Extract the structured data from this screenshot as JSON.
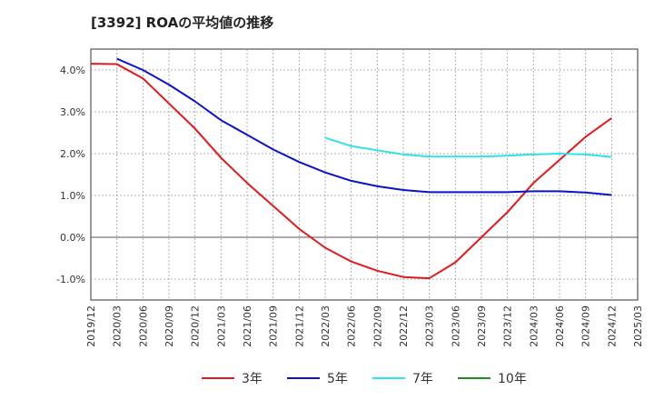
{
  "chart_data": {
    "type": "line",
    "title": "[3392]  ROAの平均値の推移",
    "x": [
      "2019/12",
      "2020/03",
      "2020/06",
      "2020/09",
      "2020/12",
      "2021/03",
      "2021/06",
      "2021/09",
      "2021/12",
      "2022/03",
      "2022/06",
      "2022/09",
      "2022/12",
      "2023/03",
      "2023/06",
      "2023/09",
      "2023/12",
      "2024/03",
      "2024/06",
      "2024/09",
      "2024/12",
      "2025/03"
    ],
    "y_ticks": [
      "-1.0%",
      "0.0%",
      "1.0%",
      "2.0%",
      "3.0%",
      "4.0%"
    ],
    "ylim": [
      -1.5,
      4.5
    ],
    "grid": true,
    "legend_position": "bottom",
    "series": [
      {
        "name": "3年",
        "color": "#e31a1c",
        "values": [
          4.15,
          4.14,
          3.8,
          3.2,
          2.6,
          1.9,
          1.3,
          0.75,
          0.2,
          -0.25,
          -0.58,
          -0.8,
          -0.95,
          -0.98,
          -0.6,
          0.0,
          0.6,
          1.3,
          1.85,
          2.4,
          2.85,
          null
        ]
      },
      {
        "name": "5年",
        "color": "#0b14c8",
        "values": [
          null,
          4.27,
          4.0,
          3.65,
          3.25,
          2.8,
          2.45,
          2.1,
          1.8,
          1.55,
          1.35,
          1.22,
          1.13,
          1.08,
          1.08,
          1.08,
          1.08,
          1.1,
          1.1,
          1.07,
          1.01,
          null
        ]
      },
      {
        "name": "7年",
        "color": "#2de3e8",
        "values": [
          null,
          null,
          null,
          null,
          null,
          null,
          null,
          null,
          null,
          2.38,
          2.18,
          2.08,
          1.98,
          1.93,
          1.93,
          1.93,
          1.95,
          1.98,
          2.0,
          1.98,
          1.92,
          null
        ]
      },
      {
        "name": "10年",
        "color": "#1e8c1e",
        "values": [
          null,
          null,
          null,
          null,
          null,
          null,
          null,
          null,
          null,
          null,
          null,
          null,
          null,
          null,
          null,
          null,
          null,
          null,
          null,
          null,
          null,
          null
        ]
      }
    ]
  }
}
